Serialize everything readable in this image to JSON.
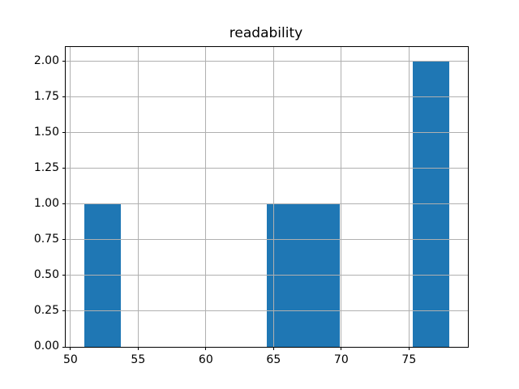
{
  "chart_data": {
    "type": "bar",
    "subtype": "histogram",
    "title": "readability",
    "xlabel": "",
    "ylabel": "",
    "bin_edges": [
      51.0,
      53.7,
      56.4,
      59.1,
      61.8,
      64.5,
      67.2,
      69.9,
      72.6,
      75.3,
      78.0
    ],
    "counts": [
      1,
      0,
      0,
      0,
      0,
      1,
      1,
      0,
      0,
      2
    ],
    "xlim": [
      49.65,
      79.35
    ],
    "ylim": [
      0,
      2.1
    ],
    "x_tick_values": [
      50,
      55,
      60,
      65,
      70,
      75
    ],
    "x_tick_labels": [
      "50",
      "55",
      "60",
      "65",
      "70",
      "75"
    ],
    "y_tick_values": [
      0,
      0.25,
      0.5,
      0.75,
      1.0,
      1.25,
      1.5,
      1.75,
      2.0
    ],
    "y_tick_labels": [
      "0.00",
      "0.25",
      "0.50",
      "0.75",
      "1.00",
      "1.25",
      "1.50",
      "1.75",
      "2.00"
    ],
    "grid": true,
    "grid_on_top_of_bars": true,
    "legend": false,
    "bar_color": "#1f77b4",
    "grid_color": "#b0b0b0",
    "axis_color": "#000000",
    "background_color": "#ffffff"
  }
}
